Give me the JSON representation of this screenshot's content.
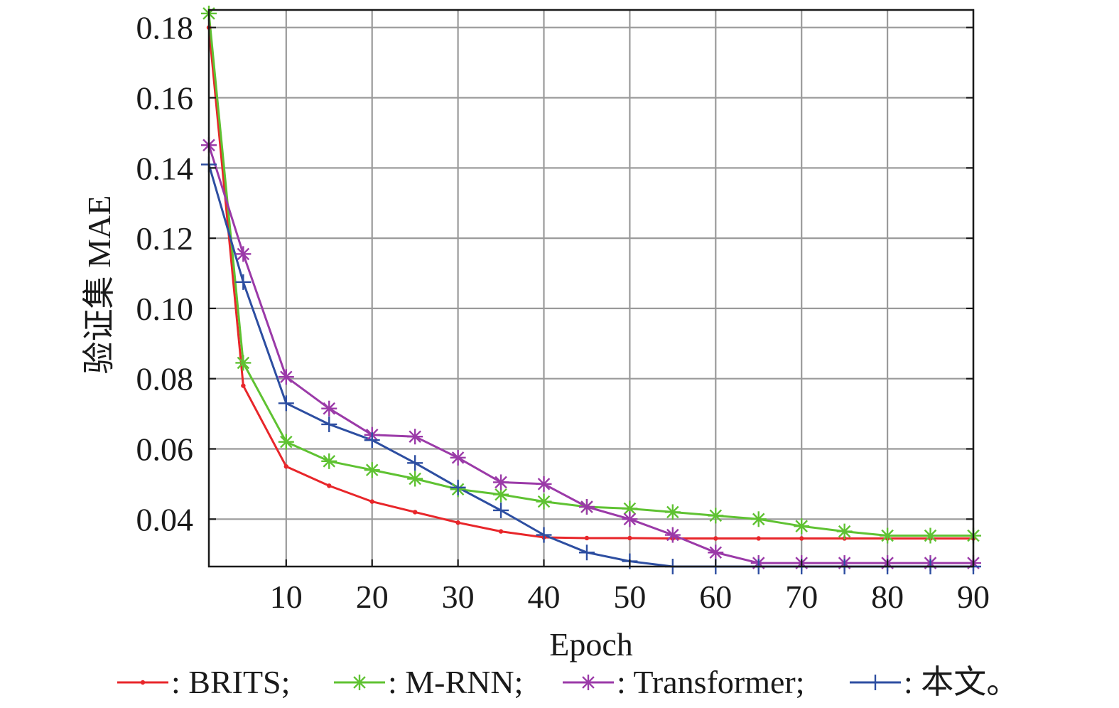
{
  "chart_data": {
    "type": "line",
    "xlabel": "Epoch",
    "ylabel": "验证集 MAE",
    "xlim": [
      1,
      90
    ],
    "ylim": [
      0.0265,
      0.185
    ],
    "xticks": [
      10,
      20,
      30,
      40,
      50,
      60,
      70,
      80,
      90
    ],
    "xtick_labels": [
      "10",
      "20",
      "30",
      "40",
      "50",
      "60",
      "70",
      "80",
      "90"
    ],
    "yticks": [
      0.04,
      0.06,
      0.08,
      0.1,
      0.12,
      0.14,
      0.16,
      0.18
    ],
    "ytick_labels": [
      "0.04",
      "0.06",
      "0.08",
      "0.10",
      "0.12",
      "0.14",
      "0.16",
      "0.18"
    ],
    "grid": true,
    "legend_position": "bottom",
    "x": [
      1,
      5,
      10,
      15,
      20,
      25,
      30,
      35,
      40,
      45,
      50,
      55,
      60,
      65,
      70,
      75,
      80,
      85,
      90
    ],
    "series": [
      {
        "name": ": BRITS;",
        "color": "#e8262a",
        "marker": "dot",
        "values": [
          0.18,
          0.078,
          0.055,
          0.0495,
          0.045,
          0.042,
          0.039,
          0.0365,
          0.0348,
          0.0346,
          0.0346,
          0.0345,
          0.0345,
          0.0345,
          0.0345,
          0.0345,
          0.0345,
          0.0345,
          0.0345
        ]
      },
      {
        "name": ": M-RNN;",
        "color": "#5fc232",
        "marker": "asterisk",
        "values": [
          0.184,
          0.0845,
          0.062,
          0.0565,
          0.054,
          0.0515,
          0.0485,
          0.047,
          0.045,
          0.0435,
          0.043,
          0.042,
          0.041,
          0.04,
          0.038,
          0.0365,
          0.0353,
          0.0353,
          0.0353
        ]
      },
      {
        "name": ": Transformer;",
        "color": "#9b3aa8",
        "marker": "star",
        "values": [
          0.1465,
          0.1155,
          0.0805,
          0.0715,
          0.064,
          0.0635,
          0.0575,
          0.0505,
          0.05,
          0.0435,
          0.04,
          0.0355,
          0.0305,
          0.0275,
          0.0275,
          0.0275,
          0.0275,
          0.0275,
          0.0275
        ]
      },
      {
        "name": ": 本文。",
        "color": "#2d4ea1",
        "marker": "plus",
        "values": [
          0.141,
          0.1075,
          0.073,
          0.067,
          0.0625,
          0.056,
          0.049,
          0.0425,
          0.0355,
          0.0305,
          0.028,
          0.0265,
          0.0265,
          0.0265,
          0.0265,
          0.0265,
          0.0265,
          0.0265,
          0.0265
        ]
      }
    ]
  }
}
